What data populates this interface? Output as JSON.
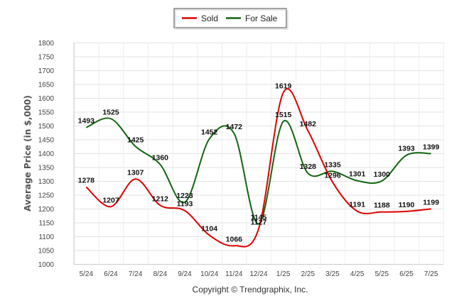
{
  "chart_data": {
    "type": "line",
    "categories": [
      "5/24",
      "6/24",
      "7/24",
      "8/24",
      "9/24",
      "10/24",
      "11/24",
      "12/24",
      "1/25",
      "2/25",
      "3/25",
      "4/25",
      "5/25",
      "6/25",
      "7/25"
    ],
    "series": [
      {
        "name": "Sold",
        "color": "#dd0000",
        "values": [
          1278,
          1207,
          1307,
          1212,
          1193,
          1104,
          1066,
          1127,
          1619,
          1482,
          1296,
          1191,
          1188,
          1190,
          1199
        ],
        "labels": [
          "1278",
          "1207",
          "1307",
          "1212",
          "1193",
          "1104",
          "1066",
          "1127",
          "1619",
          "1482",
          "1296",
          "1191",
          "1188",
          "1190",
          "1199"
        ]
      },
      {
        "name": "For Sale",
        "color": "#116611",
        "values": [
          1493,
          1525,
          1425,
          1360,
          1223,
          1452,
          1472,
          1145,
          1515,
          1328,
          1335,
          1301,
          1300,
          1393,
          1399
        ],
        "labels": [
          "1493",
          "1525",
          "1425",
          "1360",
          "1223",
          "1452",
          "1472",
          "1145",
          "1515",
          "1328",
          "1335",
          "1301",
          "1300",
          "1393",
          "1399"
        ]
      }
    ],
    "ylabel": "Average Price (in $,000)",
    "ylim": [
      1000,
      1800
    ],
    "ytick_step": 50,
    "yticks": [
      "1000",
      "1050",
      "1100",
      "1150",
      "1200",
      "1250",
      "1300",
      "1350",
      "1400",
      "1450",
      "1500",
      "1550",
      "1600",
      "1650",
      "1700",
      "1750",
      "1800"
    ],
    "grid": true,
    "legend": "top-center",
    "footer": "Copyright © Trendgraphix, Inc."
  }
}
